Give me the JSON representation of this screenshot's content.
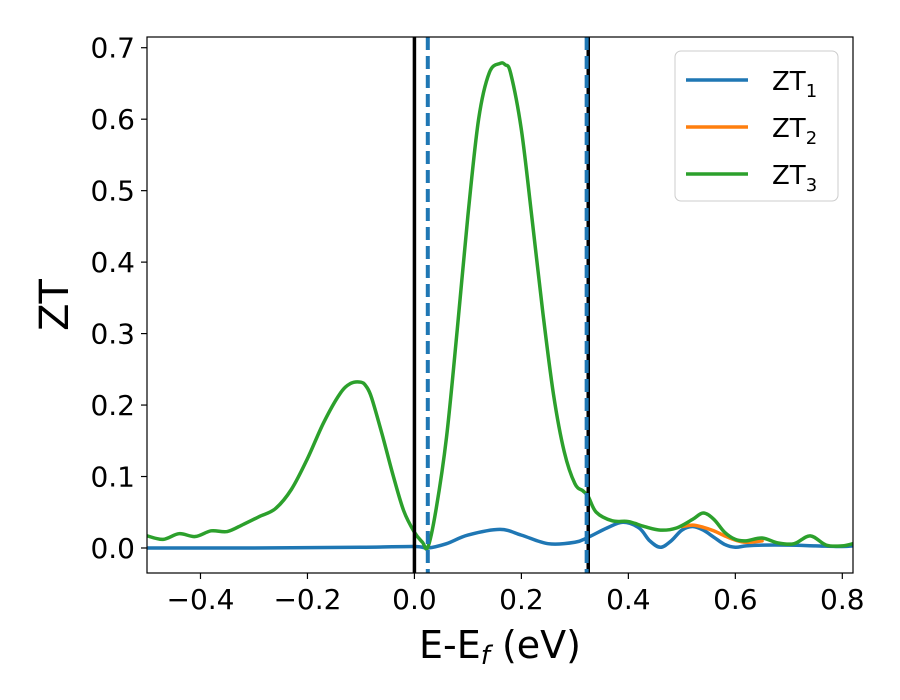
{
  "chart_data": {
    "type": "line",
    "title": "",
    "xlabel": {
      "main": "E-E",
      "sub": "f",
      "suffix": " (eV)"
    },
    "ylabel": "ZT",
    "xlim": [
      -0.5,
      0.82
    ],
    "ylim": [
      -0.035,
      0.715
    ],
    "xticks": [
      -0.4,
      -0.2,
      0.0,
      0.2,
      0.4,
      0.6,
      0.8
    ],
    "xtick_labels": [
      "−0.4",
      "−0.2",
      "0.0",
      "0.2",
      "0.4",
      "0.6",
      "0.8"
    ],
    "yticks": [
      0.0,
      0.1,
      0.2,
      0.3,
      0.4,
      0.5,
      0.6,
      0.7
    ],
    "ytick_labels": [
      "0.0",
      "0.1",
      "0.2",
      "0.3",
      "0.4",
      "0.5",
      "0.6",
      "0.7"
    ],
    "grid": false,
    "legend_position": "upper-right",
    "series": [
      {
        "name": "ZT",
        "sub": "1",
        "color": "#1f77b4",
        "x": [
          -0.5,
          -0.3,
          -0.1,
          0.0,
          0.025,
          0.06,
          0.1,
          0.16,
          0.2,
          0.25,
          0.3,
          0.325,
          0.36,
          0.39,
          0.42,
          0.44,
          0.46,
          0.48,
          0.5,
          0.52,
          0.54,
          0.56,
          0.58,
          0.6,
          0.62,
          0.65,
          0.7,
          0.75,
          0.8,
          0.82
        ],
        "y": [
          0.0,
          0.0,
          0.001,
          0.002,
          0.0,
          0.006,
          0.018,
          0.026,
          0.018,
          0.006,
          0.008,
          0.015,
          0.028,
          0.036,
          0.028,
          0.01,
          0.001,
          0.01,
          0.025,
          0.03,
          0.025,
          0.015,
          0.005,
          0.001,
          0.003,
          0.004,
          0.004,
          0.003,
          0.002,
          0.003
        ]
      },
      {
        "name": "ZT",
        "sub": "2",
        "color": "#ff7f0e",
        "x": [
          0.5,
          0.52,
          0.54,
          0.56,
          0.58,
          0.6,
          0.62,
          0.65
        ],
        "y": [
          0.03,
          0.032,
          0.029,
          0.024,
          0.017,
          0.011,
          0.008,
          0.01
        ]
      },
      {
        "name": "ZT",
        "sub": "3",
        "color": "#2ca02c",
        "x": [
          -0.5,
          -0.47,
          -0.44,
          -0.41,
          -0.38,
          -0.35,
          -0.32,
          -0.29,
          -0.26,
          -0.23,
          -0.2,
          -0.17,
          -0.14,
          -0.12,
          -0.1,
          -0.09,
          -0.08,
          -0.06,
          -0.04,
          -0.02,
          0.0,
          0.015,
          0.025,
          0.04,
          0.06,
          0.08,
          0.1,
          0.12,
          0.14,
          0.16,
          0.17,
          0.18,
          0.2,
          0.22,
          0.24,
          0.26,
          0.28,
          0.3,
          0.315,
          0.325,
          0.34,
          0.37,
          0.4,
          0.43,
          0.46,
          0.49,
          0.52,
          0.54,
          0.56,
          0.58,
          0.6,
          0.62,
          0.65,
          0.68,
          0.71,
          0.74,
          0.77,
          0.8,
          0.82
        ],
        "y": [
          0.017,
          0.012,
          0.02,
          0.016,
          0.024,
          0.023,
          0.033,
          0.044,
          0.055,
          0.082,
          0.125,
          0.175,
          0.215,
          0.23,
          0.232,
          0.226,
          0.21,
          0.158,
          0.102,
          0.052,
          0.022,
          0.008,
          0.001,
          0.052,
          0.155,
          0.305,
          0.465,
          0.6,
          0.665,
          0.678,
          0.676,
          0.664,
          0.585,
          0.46,
          0.33,
          0.215,
          0.135,
          0.09,
          0.08,
          0.072,
          0.05,
          0.038,
          0.037,
          0.03,
          0.025,
          0.028,
          0.04,
          0.049,
          0.04,
          0.022,
          0.012,
          0.01,
          0.014,
          0.007,
          0.006,
          0.017,
          0.004,
          0.003,
          0.006
        ]
      }
    ],
    "vlines": [
      {
        "x": 0.0,
        "style": "solid",
        "color": "#000000"
      },
      {
        "x": 0.325,
        "style": "solid",
        "color": "#000000"
      },
      {
        "x": 0.025,
        "style": "dashed",
        "color": "#1f77b4"
      },
      {
        "x": 0.322,
        "style": "dashed",
        "color": "#1f77b4"
      }
    ]
  }
}
